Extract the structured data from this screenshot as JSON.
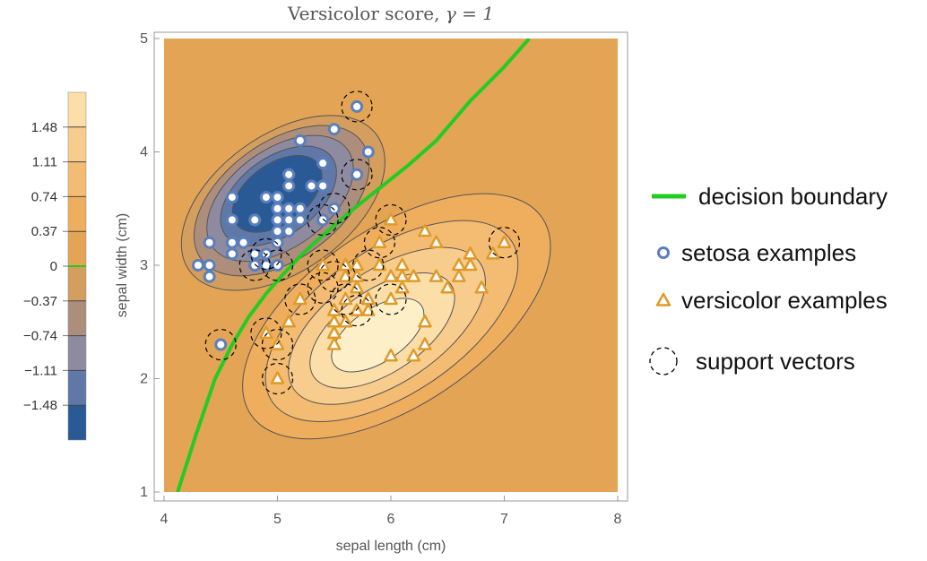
{
  "chart_data": {
    "type": "contour",
    "title": "Versicolor score, γ = 1",
    "title_prefix": "Versicolor score, ",
    "title_math": "γ = 1",
    "xlabel": "sepal length (cm)",
    "ylabel": "sepal width (cm)",
    "xlim": [
      4,
      8
    ],
    "ylim": [
      1,
      5
    ],
    "xticks": [
      4,
      5,
      6,
      7,
      8
    ],
    "yticks": [
      1,
      2,
      3,
      4,
      5
    ],
    "colorbar": {
      "min": -1.85,
      "max": 1.85,
      "ticks": [
        "1.48",
        "1.11",
        "0.74",
        "0.37",
        "0",
        "-0.37",
        "-0.74",
        "-1.11",
        "-1.48"
      ],
      "levels": [
        -1.85,
        -1.48,
        -1.11,
        -0.74,
        -0.37,
        0,
        0.37,
        0.74,
        1.11,
        1.48,
        1.85
      ],
      "colors": [
        "#2a5a96",
        "#5f78a8",
        "#8e8aa0",
        "#ad8e7c",
        "#d39e5e",
        "#e4a455",
        "#eeae5e",
        "#f4bc72",
        "#f8cc8c",
        "#fbdea8",
        "#fdf0c8"
      ],
      "zero_line_color": "#22cc22"
    },
    "decision_boundary": {
      "x": [
        4.12,
        4.28,
        4.45,
        4.6,
        4.75,
        4.9,
        5.05,
        5.2,
        5.35,
        5.5,
        5.65,
        5.8,
        5.95,
        6.15,
        6.4,
        6.7,
        7.0,
        7.22
      ],
      "y": [
        1.0,
        1.5,
        2.0,
        2.3,
        2.55,
        2.75,
        2.92,
        3.08,
        3.22,
        3.35,
        3.48,
        3.6,
        3.72,
        3.88,
        4.1,
        4.45,
        4.75,
        5.0
      ]
    },
    "series": [
      {
        "name": "setosa examples",
        "marker": "circle",
        "color": "#5b7fbd",
        "x": [
          5.1,
          4.9,
          4.7,
          4.6,
          5.0,
          5.4,
          4.6,
          5.0,
          4.4,
          4.9,
          5.4,
          4.8,
          4.8,
          4.3,
          5.8,
          5.7,
          5.4,
          5.1,
          5.7,
          5.1,
          5.4,
          5.1,
          4.6,
          5.1,
          4.8,
          5.0,
          5.0,
          5.2,
          5.2,
          4.7,
          4.8,
          5.4,
          5.2,
          5.5,
          4.9,
          5.0,
          5.5,
          4.9,
          4.4,
          5.1,
          5.0,
          4.5,
          4.4,
          5.0,
          5.1,
          4.8,
          5.1,
          4.6,
          5.3,
          5.0
        ],
        "y": [
          3.5,
          3.0,
          3.2,
          3.1,
          3.6,
          3.9,
          3.4,
          3.4,
          2.9,
          3.1,
          3.7,
          3.4,
          3.0,
          3.0,
          4.0,
          4.4,
          3.9,
          3.5,
          3.8,
          3.8,
          3.4,
          3.7,
          3.6,
          3.3,
          3.4,
          3.0,
          3.4,
          3.5,
          3.4,
          3.2,
          3.1,
          3.4,
          4.1,
          4.2,
          3.1,
          3.2,
          3.5,
          3.6,
          3.0,
          3.4,
          3.5,
          2.3,
          3.2,
          3.5,
          3.8,
          3.0,
          3.8,
          3.2,
          3.7,
          3.3
        ]
      },
      {
        "name": "versicolor examples",
        "marker": "triangle",
        "color": "#e09a2a",
        "x": [
          7.0,
          6.4,
          6.9,
          5.5,
          6.5,
          5.7,
          6.3,
          4.9,
          6.6,
          5.2,
          5.0,
          5.9,
          6.0,
          6.1,
          5.6,
          6.7,
          5.6,
          5.8,
          6.2,
          5.6,
          5.9,
          6.1,
          6.3,
          6.1,
          6.4,
          6.6,
          6.8,
          6.7,
          6.0,
          5.7,
          5.5,
          5.5,
          5.8,
          6.0,
          5.4,
          6.0,
          6.7,
          6.3,
          5.6,
          5.5,
          5.5,
          6.1,
          5.8,
          5.0,
          5.6,
          5.7,
          5.7,
          6.2,
          5.1,
          5.7
        ],
        "y": [
          3.2,
          3.2,
          3.1,
          2.3,
          2.8,
          2.8,
          3.3,
          2.4,
          2.9,
          2.7,
          2.0,
          3.0,
          2.2,
          2.9,
          2.9,
          3.1,
          3.0,
          2.7,
          2.2,
          2.5,
          3.2,
          2.8,
          2.5,
          2.8,
          2.9,
          3.0,
          2.8,
          3.0,
          2.9,
          2.6,
          2.4,
          2.4,
          2.7,
          2.7,
          3.0,
          3.4,
          3.1,
          2.3,
          3.0,
          2.5,
          2.6,
          3.0,
          2.6,
          2.3,
          2.7,
          3.0,
          2.9,
          2.9,
          2.5,
          2.8
        ]
      },
      {
        "name": "support vectors",
        "marker": "dashed-circle",
        "color": "#000000",
        "x": [
          5.7,
          5.7,
          5.4,
          5.5,
          5.4,
          4.8,
          4.9,
          4.5,
          5.0,
          5.5,
          5.6,
          5.8,
          6.0,
          5.9,
          5.4,
          5.2,
          4.9,
          5.0,
          5.0,
          7.0,
          6.0,
          5.7
        ],
        "y": [
          4.4,
          3.8,
          3.4,
          3.5,
          3.0,
          3.0,
          3.1,
          2.3,
          3.0,
          2.9,
          2.7,
          3.0,
          3.4,
          3.2,
          2.8,
          2.7,
          2.4,
          2.3,
          2.0,
          3.2,
          2.7,
          2.6
        ]
      }
    ],
    "legend": {
      "position": "right",
      "items": [
        {
          "label": "decision boundary",
          "symbol": "line",
          "color": "#22cc22"
        },
        {
          "label": "setosa examples",
          "symbol": "circle",
          "color": "#5b7fbd"
        },
        {
          "label": "versicolor examples",
          "symbol": "triangle",
          "color": "#e09a2a"
        },
        {
          "label": "support vectors",
          "symbol": "dashed-circle",
          "color": "#000000"
        }
      ]
    }
  }
}
